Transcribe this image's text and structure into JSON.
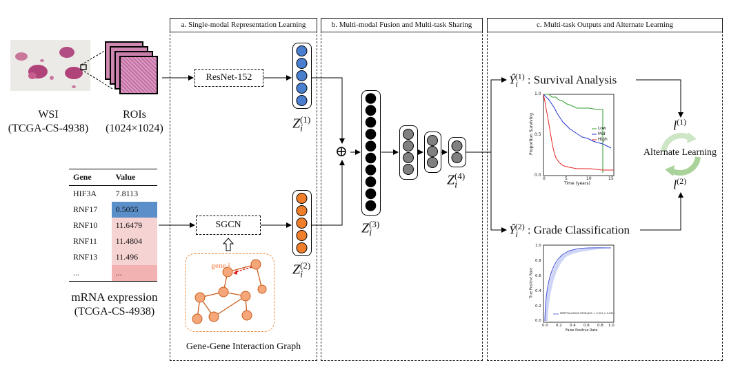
{
  "panels": {
    "a": {
      "title": "a. Single-modal Representation Learning"
    },
    "b": {
      "title": "b. Multi-modal Fusion and Multi-task Sharing"
    },
    "c": {
      "title": "c. Multi-task Outputs and Alternate Learning"
    }
  },
  "wsi": {
    "label": "WSI",
    "sublabel": "(TCGA-CS-4938)"
  },
  "rois": {
    "label": "ROIs",
    "sublabel": "(1024×1024)"
  },
  "resnet": {
    "label": "ResNet-152"
  },
  "sgcn": {
    "label": "SGCN"
  },
  "graph": {
    "label": "Gene-Gene Interaction Graph",
    "node_label": "gene i"
  },
  "mrna": {
    "label": "mRNA expression",
    "sublabel": "(TCGA-CS-4938)"
  },
  "table": {
    "headers": [
      "Gene",
      "Value"
    ],
    "rows": [
      {
        "gene": "HIF3A",
        "value": "7.8113",
        "color": "#ffffff"
      },
      {
        "gene": "RNF17",
        "value": "0.5055",
        "color": "#5b8fc9"
      },
      {
        "gene": "RNF10",
        "value": "11.6479",
        "color": "#f6d3d3"
      },
      {
        "gene": "RNF11",
        "value": "11.4804",
        "color": "#f6d3d3"
      },
      {
        "gene": "RNF13",
        "value": "11.496",
        "color": "#f6d3d3"
      },
      {
        "gene": "...",
        "value": "...",
        "color": "#f2b2b2"
      }
    ]
  },
  "vectors": {
    "z1": {
      "base": "Z",
      "sub": "i",
      "sup": "(1)"
    },
    "z2": {
      "base": "Z",
      "sub": "i",
      "sup": "(2)"
    },
    "z3": {
      "base": "Z",
      "sub": "i",
      "sup": "(3)"
    },
    "z4": {
      "base": "Z",
      "sub": "i",
      "sup": "(4)"
    }
  },
  "fusion_symbol": "⊕",
  "outputs": {
    "y1": {
      "sup": "(1)",
      "text": ": Survival Analysis"
    },
    "y2": {
      "sup": "(2)",
      "text": ": Grade Classification"
    }
  },
  "alternate": {
    "label": "Alternate Learning",
    "l1": "(1)",
    "l2": "(2)"
  },
  "survival_plot": {
    "ylabel": "Proportion Surviving",
    "xlabel": "Time (years)",
    "yticks": [
      "0.0",
      "0.5",
      "1.0"
    ],
    "xticks": [
      "0",
      "5",
      "10",
      "15"
    ],
    "legend": [
      "Low",
      "Mid",
      "High"
    ],
    "colors": [
      "#2e9e2e",
      "#2233cc",
      "#e52222"
    ]
  },
  "roc_plot": {
    "ylabel": "True Positive Rate",
    "xlabel": "False Positive Rate",
    "ticks": [
      "0.0",
      "0.2",
      "0.4",
      "0.6",
      "0.8",
      "1.0"
    ],
    "legend": "MMPFFA-elSSGS+ROR(AUC = 0.921 ± 0.031)"
  },
  "colors": {
    "blue_node": "#4a7fd0",
    "orange_node": "#ef7f2a",
    "black_node": "#000000",
    "gray_node": "#808080",
    "graph_node": "#f5a77a"
  }
}
